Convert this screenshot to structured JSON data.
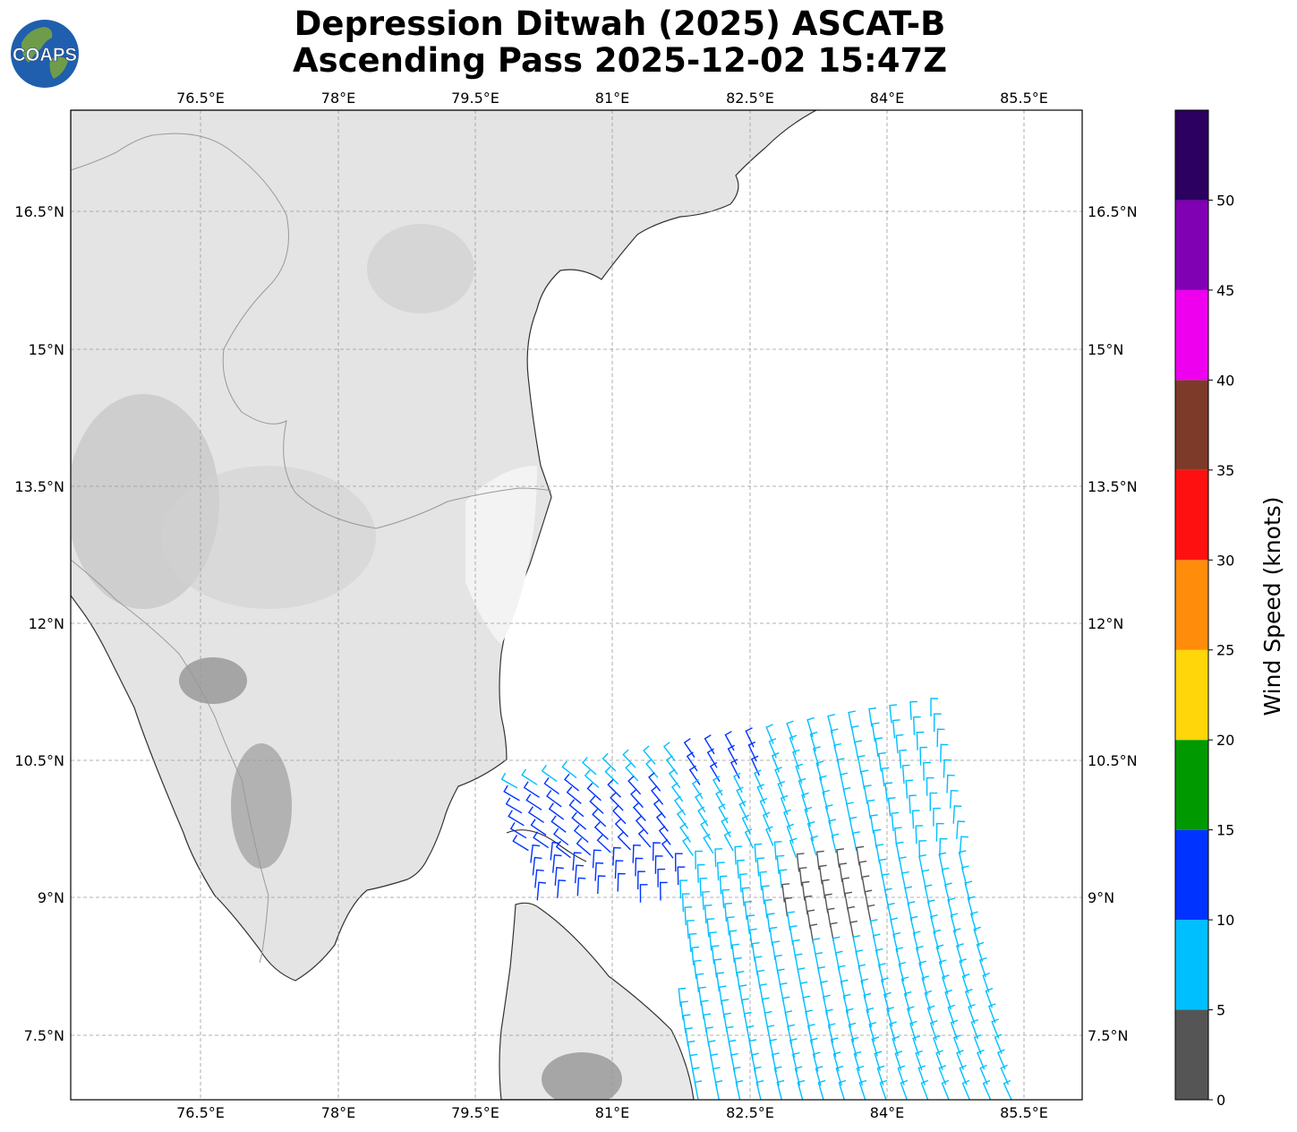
{
  "title": {
    "line1": "Depression Ditwah (2025) ASCAT-B",
    "line2": "Ascending Pass 2025-12-02 15:47Z"
  },
  "logo": {
    "text": "COAPS",
    "ocean_color": "#1f5fae",
    "land_color": "#6f9c4a"
  },
  "map": {
    "lon_ticks": [
      "76.5°E",
      "78°E",
      "79.5°E",
      "81°E",
      "82.5°E",
      "84°E",
      "85.5°E"
    ],
    "lat_ticks": [
      "16.5°N",
      "15°N",
      "13.5°N",
      "12°N",
      "10.5°N",
      "9°N",
      "7.5°N"
    ],
    "coastline_color": "#333333",
    "land_color": "#e4e4e4"
  },
  "colorbar": {
    "label": "Wind Speed (knots)",
    "ticks": [
      "0",
      "5",
      "10",
      "15",
      "20",
      "25",
      "30",
      "35",
      "40",
      "45",
      "50"
    ],
    "bins": [
      {
        "min": 0,
        "max": 5,
        "color": "#555555"
      },
      {
        "min": 5,
        "max": 10,
        "color": "#00bfff"
      },
      {
        "min": 10,
        "max": 15,
        "color": "#0033ff"
      },
      {
        "min": 15,
        "max": 20,
        "color": "#009900"
      },
      {
        "min": 20,
        "max": 25,
        "color": "#ffd60a"
      },
      {
        "min": 25,
        "max": 30,
        "color": "#ff8c0a"
      },
      {
        "min": 30,
        "max": 35,
        "color": "#ff1010"
      },
      {
        "min": 35,
        "max": 40,
        "color": "#7d3a28"
      },
      {
        "min": 40,
        "max": 45,
        "color": "#ee00ee"
      },
      {
        "min": 45,
        "max": 50,
        "color": "#8000b4"
      },
      {
        "min": 50,
        "max": 55,
        "color": "#2b0060"
      }
    ]
  }
}
